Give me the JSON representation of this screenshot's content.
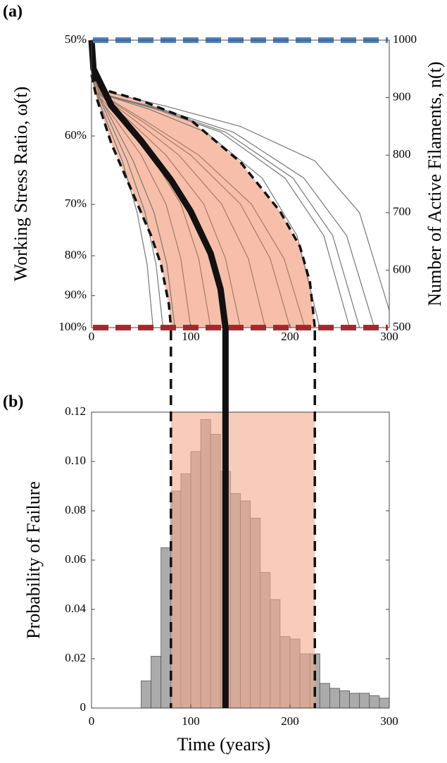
{
  "chart_data": [
    {
      "type": "line",
      "panel_label": "(a)",
      "y_label": "Working Stress Ratio, ω(t)",
      "y2_label": "Number of Active Filaments, n(t)",
      "xlim": [
        0,
        300
      ],
      "xticks": [
        0,
        100,
        200,
        300
      ],
      "ylim": [
        50,
        100
      ],
      "yscale": "reciprocal",
      "yticks": [
        {
          "value": 50,
          "label": "50%"
        },
        {
          "value": 60,
          "label": "60%"
        },
        {
          "value": 70,
          "label": "70%"
        },
        {
          "value": 80,
          "label": "80%"
        },
        {
          "value": 90,
          "label": "90%"
        },
        {
          "value": 100,
          "label": "100%"
        }
      ],
      "y2lim": [
        500,
        1000
      ],
      "y2ticks": [
        500,
        600,
        700,
        800,
        900,
        1000
      ],
      "band": {
        "color": "#f4a98c",
        "between": [
          1,
          2
        ]
      },
      "hlines": [
        {
          "value": 1000,
          "color": "#4a82c6"
        },
        {
          "value": 500,
          "color": "#b3262b"
        }
      ],
      "series": [
        {
          "axis": "y2",
          "color": "#111111",
          "linestyle": "solid",
          "linewidth": 9,
          "x": [
            0,
            2,
            20,
            50,
            80,
            100,
            120,
            130,
            135
          ],
          "values": [
            1000,
            950,
            886,
            825,
            757,
            702,
            629,
            567,
            500
          ]
        },
        {
          "axis": "y2",
          "color": "#111111",
          "linestyle": "dashed",
          "linewidth": 3.5,
          "x": [
            0,
            5,
            20,
            40,
            60,
            70,
            78,
            80
          ],
          "values": [
            940,
            900,
            820,
            740,
            660,
            610,
            540,
            500
          ]
        },
        {
          "axis": "y2",
          "color": "#111111",
          "linestyle": "dashed",
          "linewidth": 3.5,
          "x": [
            0,
            10,
            50,
            100,
            150,
            190,
            210,
            220,
            225
          ],
          "values": [
            940,
            915,
            895,
            861,
            788,
            702,
            641,
            580,
            500
          ]
        },
        {
          "axis": "y2",
          "color": "#777777",
          "linestyle": "solid",
          "linewidth": 1.2,
          "x": [
            0,
            3,
            15,
            31,
            46,
            56,
            62
          ],
          "values": [
            950,
            915,
            860,
            790,
            700,
            610,
            500
          ]
        },
        {
          "axis": "y2",
          "color": "#777777",
          "linestyle": "solid",
          "linewidth": 1.2,
          "x": [
            0,
            4,
            18,
            36,
            54,
            65,
            72
          ],
          "values": [
            950,
            915,
            860,
            790,
            700,
            610,
            500
          ]
        },
        {
          "axis": "y2",
          "color": "#777777",
          "linestyle": "solid",
          "linewidth": 1.2,
          "x": [
            0,
            4,
            21,
            42,
            63,
            76,
            84
          ],
          "values": [
            950,
            915,
            860,
            790,
            700,
            610,
            500
          ]
        },
        {
          "axis": "y2",
          "color": "#a57a6c",
          "linestyle": "solid",
          "linewidth": 1.2,
          "x": [
            0,
            5,
            25,
            50,
            75,
            90,
            100
          ],
          "values": [
            945,
            905,
            860,
            800,
            715,
            620,
            500
          ]
        },
        {
          "axis": "y2",
          "color": "#a57a6c",
          "linestyle": "solid",
          "linewidth": 1.2,
          "x": [
            0,
            6,
            30,
            60,
            90,
            108,
            120
          ],
          "values": [
            945,
            905,
            860,
            800,
            715,
            620,
            500
          ]
        },
        {
          "axis": "y2",
          "color": "#a57a6c",
          "linestyle": "solid",
          "linewidth": 1.2,
          "x": [
            0,
            8,
            38,
            75,
            113,
            135,
            150
          ],
          "values": [
            945,
            905,
            860,
            800,
            715,
            620,
            500
          ]
        },
        {
          "axis": "y2",
          "color": "#a57a6c",
          "linestyle": "solid",
          "linewidth": 1.2,
          "x": [
            0,
            9,
            44,
            88,
            131,
            158,
            175
          ],
          "values": [
            945,
            905,
            860,
            800,
            715,
            620,
            500
          ]
        },
        {
          "axis": "y2",
          "color": "#a57a6c",
          "linestyle": "solid",
          "linewidth": 1.2,
          "x": [
            0,
            10,
            50,
            100,
            150,
            180,
            200
          ],
          "values": [
            945,
            905,
            860,
            800,
            715,
            620,
            500
          ]
        },
        {
          "axis": "y2",
          "color": "#a57a6c",
          "linestyle": "solid",
          "linewidth": 1.2,
          "x": [
            0,
            11,
            54,
            108,
            161,
            194,
            215
          ],
          "values": [
            945,
            905,
            860,
            800,
            715,
            620,
            500
          ]
        },
        {
          "axis": "y2",
          "color": "#777777",
          "linestyle": "solid",
          "linewidth": 1.2,
          "x": [
            0,
            12,
            58,
            115,
            172,
            207,
            230
          ],
          "values": [
            950,
            905,
            880,
            840,
            760,
            660,
            500
          ]
        },
        {
          "axis": "y2",
          "color": "#777777",
          "linestyle": "solid",
          "linewidth": 1.2,
          "x": [
            0,
            13,
            65,
            130,
            195,
            234,
            260
          ],
          "values": [
            950,
            905,
            880,
            840,
            760,
            660,
            500
          ]
        },
        {
          "axis": "y2",
          "color": "#777777",
          "linestyle": "solid",
          "linewidth": 1.2,
          "x": [
            0,
            14,
            68,
            135,
            203,
            243,
            270
          ],
          "values": [
            950,
            905,
            880,
            840,
            760,
            660,
            500
          ]
        },
        {
          "axis": "y2",
          "color": "#777777",
          "linestyle": "solid",
          "linewidth": 1.2,
          "x": [
            0,
            14,
            71,
            143,
            214,
            257,
            285
          ],
          "values": [
            950,
            905,
            880,
            840,
            760,
            660,
            500
          ]
        },
        {
          "axis": "y2",
          "color": "#777777",
          "linestyle": "solid",
          "linewidth": 1.2,
          "x": [
            0,
            15,
            75,
            150,
            225,
            270,
            300
          ],
          "values": [
            950,
            910,
            885,
            850,
            790,
            700,
            530
          ]
        }
      ]
    },
    {
      "type": "histogram",
      "panel_label": "(b)",
      "x_label": "Time (years)",
      "y_label": "Probability of Failure",
      "xlim": [
        0,
        300
      ],
      "xticks": [
        0,
        100,
        200,
        300
      ],
      "ylim": [
        0,
        0.12
      ],
      "yticks": [
        0,
        0.02,
        0.04,
        0.06,
        0.08,
        {
          "value": 0.1,
          "label": "0.10"
        },
        0.12
      ],
      "color": "#ababab",
      "bins": [
        50,
        60,
        70,
        80,
        90,
        100,
        110,
        120,
        130,
        140,
        150,
        160,
        170,
        180,
        190,
        200,
        210,
        220,
        230,
        240,
        250,
        260,
        270,
        280,
        290,
        300
      ],
      "values": [
        0.011,
        0.021,
        0.065,
        0.088,
        0.095,
        0.104,
        0.117,
        0.111,
        0.096,
        0.087,
        0.084,
        0.077,
        0.055,
        0.044,
        0.029,
        0.028,
        0.022,
        0.022,
        0.01,
        0.008,
        0.007,
        0.006,
        0.006,
        0.005,
        0.004
      ],
      "band": {
        "color": "#f4a98c",
        "lower": 80,
        "upper": 225
      },
      "mean": 135
    }
  ]
}
